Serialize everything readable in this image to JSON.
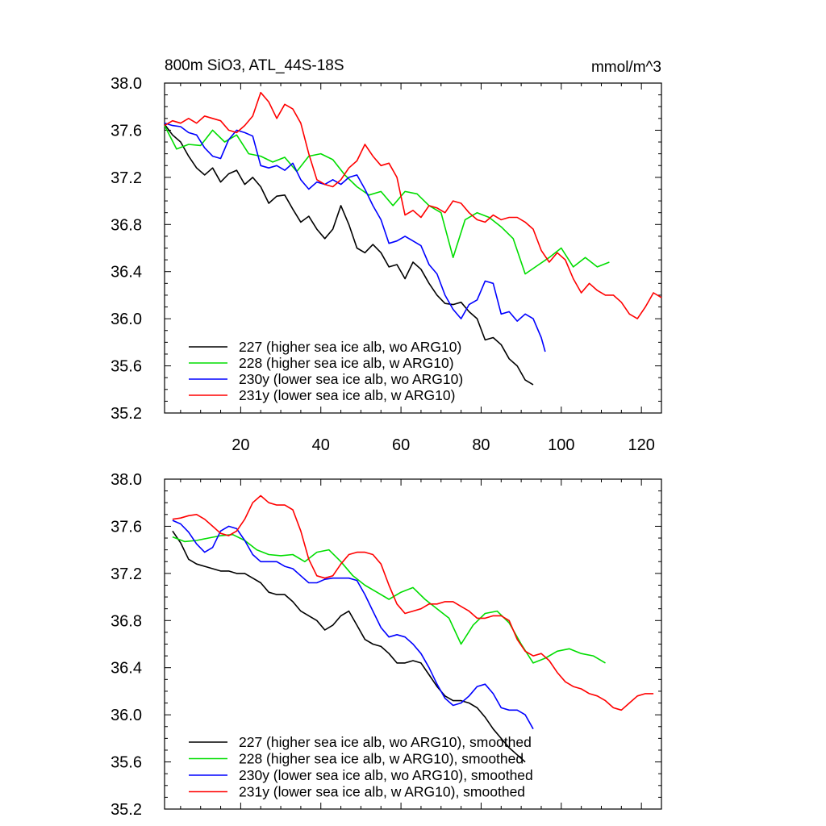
{
  "colors": {
    "227": "#000000",
    "228": "#00dd00",
    "230y": "#0000ff",
    "231y": "#ff0000"
  },
  "chart_data": [
    {
      "type": "line",
      "title": "800m SiO3, ATL_44S-18S",
      "units": "mmol/m^3",
      "xlim": [
        1,
        125
      ],
      "ylim": [
        35.2,
        38.0
      ],
      "y_ticks": [
        "38.0",
        "37.6",
        "37.2",
        "36.8",
        "36.4",
        "36.0",
        "35.6",
        "35.2"
      ],
      "x_ticks": [
        "20",
        "40",
        "60",
        "80",
        "100",
        "120"
      ],
      "legend_position": "bottom-left",
      "series": [
        {
          "id": "227",
          "name": "227 (higher sea ice alb, wo ARG10)",
          "x": [
            1,
            3,
            5,
            7,
            9,
            11,
            13,
            15,
            17,
            19,
            21,
            23,
            25,
            27,
            29,
            31,
            33,
            35,
            37,
            39,
            41,
            43,
            45,
            47,
            49,
            51,
            53,
            55,
            57,
            59,
            61,
            63,
            65,
            67,
            69,
            71,
            73,
            75,
            77,
            79,
            81,
            83,
            85,
            87,
            89,
            91,
            93
          ],
          "y": [
            37.65,
            37.56,
            37.5,
            37.38,
            37.28,
            37.22,
            37.28,
            37.16,
            37.23,
            37.26,
            37.14,
            37.2,
            37.12,
            36.98,
            37.04,
            37.05,
            36.93,
            36.82,
            36.87,
            36.76,
            36.68,
            36.76,
            36.96,
            36.8,
            36.6,
            36.56,
            36.63,
            36.56,
            36.44,
            36.46,
            36.34,
            36.48,
            36.42,
            36.3,
            36.2,
            36.13,
            36.12,
            36.14,
            36.06,
            36.0,
            35.82,
            35.84,
            35.78,
            35.66,
            35.6,
            35.48,
            35.44
          ]
        },
        {
          "id": "228",
          "name": "228 (higher sea ice alb, w ARG10)",
          "x": [
            1,
            4,
            7,
            10,
            13,
            16,
            19,
            22,
            25,
            28,
            31,
            34,
            37,
            40,
            43,
            46,
            49,
            52,
            55,
            58,
            61,
            64,
            67,
            70,
            73,
            76,
            79,
            82,
            85,
            88,
            91,
            94,
            97,
            100,
            103,
            106,
            109,
            112
          ],
          "y": [
            37.64,
            37.44,
            37.48,
            37.47,
            37.6,
            37.5,
            37.56,
            37.4,
            37.38,
            37.33,
            37.37,
            37.25,
            37.38,
            37.4,
            37.35,
            37.22,
            37.12,
            37.05,
            37.08,
            36.96,
            37.08,
            37.06,
            36.96,
            36.9,
            36.52,
            36.84,
            36.9,
            36.86,
            36.78,
            36.68,
            36.38,
            36.45,
            36.52,
            36.6,
            36.44,
            36.52,
            36.44,
            36.48
          ]
        },
        {
          "id": "230y",
          "name": "230y (lower sea ice alb, wo ARG10)",
          "x": [
            1,
            3,
            5,
            7,
            9,
            11,
            13,
            15,
            17,
            19,
            21,
            23,
            25,
            27,
            29,
            31,
            33,
            35,
            37,
            39,
            41,
            43,
            45,
            47,
            49,
            51,
            53,
            55,
            57,
            59,
            61,
            63,
            65,
            67,
            69,
            71,
            73,
            75,
            77,
            79,
            81,
            83,
            85,
            87,
            89,
            91,
            93,
            95,
            96
          ],
          "y": [
            37.66,
            37.64,
            37.63,
            37.58,
            37.56,
            37.45,
            37.38,
            37.36,
            37.52,
            37.6,
            37.58,
            37.55,
            37.3,
            37.28,
            37.3,
            37.26,
            37.32,
            37.18,
            37.1,
            37.16,
            37.14,
            37.18,
            37.14,
            37.2,
            37.22,
            37.1,
            36.96,
            36.84,
            36.64,
            36.66,
            36.7,
            36.66,
            36.62,
            36.46,
            36.38,
            36.2,
            36.08,
            36.0,
            36.12,
            36.16,
            36.32,
            36.3,
            36.04,
            36.06,
            35.98,
            36.04,
            36.0,
            35.84,
            35.72
          ]
        },
        {
          "id": "231y",
          "name": "231y (lower sea ice alb, w ARG10)",
          "x": [
            1,
            3,
            5,
            7,
            9,
            11,
            13,
            15,
            17,
            19,
            21,
            23,
            25,
            27,
            29,
            31,
            33,
            35,
            37,
            39,
            41,
            43,
            45,
            47,
            49,
            51,
            53,
            55,
            57,
            59,
            61,
            63,
            65,
            67,
            69,
            71,
            73,
            75,
            77,
            79,
            81,
            83,
            85,
            87,
            89,
            91,
            93,
            95,
            97,
            99,
            101,
            103,
            105,
            107,
            109,
            111,
            113,
            115,
            117,
            119,
            121,
            123,
            125
          ],
          "y": [
            37.64,
            37.68,
            37.66,
            37.7,
            37.66,
            37.72,
            37.7,
            37.68,
            37.6,
            37.58,
            37.64,
            37.72,
            37.92,
            37.84,
            37.7,
            37.82,
            37.78,
            37.66,
            37.4,
            37.18,
            37.14,
            37.12,
            37.18,
            37.28,
            37.34,
            37.48,
            37.38,
            37.3,
            37.32,
            37.2,
            36.88,
            36.92,
            36.86,
            36.96,
            36.94,
            36.9,
            37.0,
            36.98,
            36.9,
            36.84,
            36.82,
            36.88,
            36.84,
            36.86,
            36.86,
            36.82,
            36.76,
            36.58,
            36.48,
            36.56,
            36.5,
            36.34,
            36.22,
            36.3,
            36.24,
            36.2,
            36.2,
            36.14,
            36.04,
            36.0,
            36.1,
            36.22,
            36.18
          ]
        }
      ]
    },
    {
      "type": "line",
      "title": "",
      "units": "",
      "xlim": [
        1,
        125
      ],
      "ylim": [
        35.2,
        38.0
      ],
      "y_ticks": [
        "38.0",
        "37.6",
        "37.2",
        "36.8",
        "36.4",
        "36.0",
        "35.6",
        "35.2"
      ],
      "x_ticks": [],
      "legend_position": "bottom-left",
      "series": [
        {
          "id": "227",
          "name": "227 (higher sea ice alb, wo ARG10), smoothed",
          "x": [
            3,
            5,
            7,
            9,
            11,
            13,
            15,
            17,
            19,
            21,
            23,
            25,
            27,
            29,
            31,
            33,
            35,
            37,
            39,
            41,
            43,
            45,
            47,
            49,
            51,
            53,
            55,
            57,
            59,
            61,
            63,
            65,
            67,
            69,
            71,
            73,
            75,
            77,
            79,
            81,
            83,
            85,
            87,
            89,
            91
          ],
          "y": [
            37.56,
            37.46,
            37.32,
            37.28,
            37.26,
            37.24,
            37.22,
            37.22,
            37.2,
            37.2,
            37.16,
            37.12,
            37.04,
            37.02,
            37.02,
            36.96,
            36.88,
            36.84,
            36.8,
            36.72,
            36.76,
            36.84,
            36.88,
            36.76,
            36.64,
            36.6,
            36.58,
            36.52,
            36.44,
            36.44,
            36.46,
            36.44,
            36.34,
            36.24,
            36.16,
            36.12,
            36.12,
            36.1,
            36.06,
            35.98,
            35.88,
            35.8,
            35.72,
            35.66,
            35.6
          ]
        },
        {
          "id": "228",
          "name": "228 (higher sea ice alb, w ARG10), smoothed",
          "x": [
            3,
            6,
            9,
            12,
            15,
            18,
            21,
            24,
            27,
            30,
            33,
            36,
            39,
            42,
            45,
            48,
            51,
            54,
            57,
            60,
            63,
            66,
            69,
            72,
            75,
            78,
            81,
            84,
            87,
            90,
            93,
            96,
            99,
            102,
            105,
            108,
            111
          ],
          "y": [
            37.51,
            37.47,
            37.48,
            37.5,
            37.52,
            37.53,
            37.48,
            37.4,
            37.36,
            37.35,
            37.36,
            37.3,
            37.38,
            37.4,
            37.3,
            37.18,
            37.1,
            37.04,
            36.98,
            37.04,
            37.08,
            36.98,
            36.9,
            36.82,
            36.6,
            36.76,
            36.86,
            36.88,
            36.78,
            36.6,
            36.44,
            36.48,
            36.54,
            36.56,
            36.52,
            36.5,
            36.44
          ]
        },
        {
          "id": "230y",
          "name": "230y (lower sea ice alb, wo ARG10), smoothed",
          "x": [
            3,
            5,
            7,
            9,
            11,
            13,
            15,
            17,
            19,
            21,
            23,
            25,
            27,
            29,
            31,
            33,
            35,
            37,
            39,
            41,
            43,
            45,
            47,
            49,
            51,
            53,
            55,
            57,
            59,
            61,
            63,
            65,
            67,
            69,
            71,
            73,
            75,
            77,
            79,
            81,
            83,
            85,
            87,
            89,
            91,
            93
          ],
          "y": [
            37.65,
            37.62,
            37.55,
            37.45,
            37.38,
            37.42,
            37.56,
            37.6,
            37.58,
            37.48,
            37.36,
            37.3,
            37.3,
            37.3,
            37.26,
            37.24,
            37.18,
            37.12,
            37.12,
            37.15,
            37.16,
            37.16,
            37.16,
            37.14,
            37.02,
            36.88,
            36.74,
            36.66,
            36.68,
            36.66,
            36.6,
            36.52,
            36.4,
            36.26,
            36.14,
            36.08,
            36.1,
            36.16,
            36.24,
            36.26,
            36.18,
            36.06,
            36.04,
            36.04,
            36.0,
            35.88
          ]
        },
        {
          "id": "231y",
          "name": "231y (lower sea ice alb, w ARG10), smoothed",
          "x": [
            3,
            5,
            7,
            9,
            11,
            13,
            15,
            17,
            19,
            21,
            23,
            25,
            27,
            29,
            31,
            33,
            35,
            37,
            39,
            41,
            43,
            45,
            47,
            49,
            51,
            53,
            55,
            57,
            59,
            61,
            63,
            65,
            67,
            69,
            71,
            73,
            75,
            77,
            79,
            81,
            83,
            85,
            87,
            89,
            91,
            93,
            95,
            97,
            99,
            101,
            103,
            105,
            107,
            109,
            111,
            113,
            115,
            117,
            119,
            121,
            123
          ],
          "y": [
            37.66,
            37.67,
            37.69,
            37.7,
            37.66,
            37.6,
            37.54,
            37.52,
            37.56,
            37.66,
            37.8,
            37.86,
            37.8,
            37.78,
            37.78,
            37.74,
            37.56,
            37.32,
            37.18,
            37.16,
            37.18,
            37.28,
            37.36,
            37.38,
            37.38,
            37.36,
            37.28,
            37.1,
            36.94,
            36.86,
            36.88,
            36.9,
            36.94,
            36.94,
            36.96,
            36.96,
            36.92,
            36.88,
            36.82,
            36.82,
            36.84,
            36.84,
            36.8,
            36.64,
            36.54,
            36.5,
            36.52,
            36.46,
            36.36,
            36.28,
            36.24,
            36.22,
            36.18,
            36.16,
            36.12,
            36.06,
            36.04,
            36.1,
            36.16,
            36.18,
            36.18
          ]
        }
      ]
    }
  ]
}
